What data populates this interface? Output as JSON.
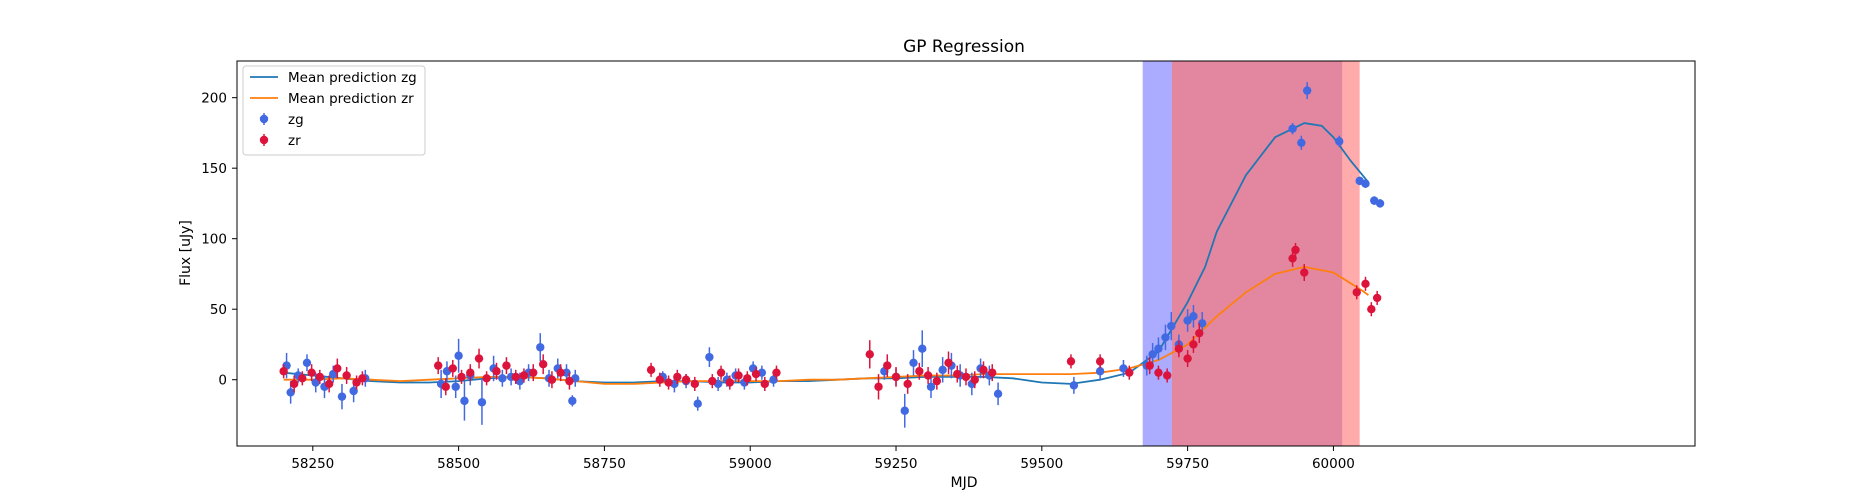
{
  "chart_data": {
    "type": "scatter",
    "title": "GP Regression",
    "xlabel": "MJD",
    "ylabel": "Flux [uJy]",
    "xlim": [
      58120,
      60620
    ],
    "ylim": [
      -47,
      226
    ],
    "xticks": [
      58250,
      58500,
      58750,
      59000,
      59250,
      59500,
      59750,
      60000
    ],
    "yticks": [
      0,
      50,
      100,
      150,
      200
    ],
    "grid": false,
    "legend_position": "top-left",
    "colors": {
      "zg": "#4169e1",
      "zr": "#dc143c",
      "mean_zg": "#1f77b4",
      "mean_zr": "#ff7f0e"
    },
    "shaded_regions": [
      {
        "x0": 59673,
        "x1": 59723,
        "color": "#0000ff",
        "opacity": 0.33
      },
      {
        "x0": 59723,
        "x1": 60015,
        "color": "#9370db",
        "opacity": 0.38
      },
      {
        "x0": 59723,
        "x1": 60045,
        "color": "#ff0000",
        "opacity": 0.33
      }
    ],
    "series": [
      {
        "name": "Mean prediction zg",
        "kind": "line",
        "x": [
          58200,
          58250,
          58300,
          58350,
          58400,
          58450,
          58500,
          58550,
          58600,
          58650,
          58700,
          58750,
          58800,
          58850,
          58900,
          58950,
          59000,
          59050,
          59100,
          59150,
          59200,
          59250,
          59300,
          59350,
          59400,
          59450,
          59500,
          59550,
          59600,
          59650,
          59700,
          59750,
          59780,
          59800,
          59850,
          59900,
          59950,
          59980,
          60000,
          60030,
          60060
        ],
        "y": [
          5,
          3,
          1,
          -1,
          -2,
          -2,
          -1,
          1,
          2,
          1,
          -1,
          -2,
          -2,
          -1,
          -1,
          -2,
          -2,
          -1,
          -1,
          0,
          1,
          1,
          2,
          2,
          2,
          1,
          -2,
          -3,
          0,
          5,
          20,
          55,
          80,
          105,
          145,
          172,
          182,
          180,
          172,
          155,
          140
        ]
      },
      {
        "name": "Mean prediction zr",
        "kind": "line",
        "x": [
          58200,
          58250,
          58300,
          58350,
          58400,
          58450,
          58500,
          58550,
          58600,
          58650,
          58700,
          58750,
          58800,
          58850,
          58900,
          58950,
          59000,
          59050,
          59100,
          59150,
          59200,
          59250,
          59300,
          59350,
          59400,
          59450,
          59500,
          59550,
          59600,
          59650,
          59700,
          59750,
          59800,
          59850,
          59900,
          59950,
          60000,
          60050,
          60060
        ],
        "y": [
          0,
          0,
          1,
          0,
          -1,
          0,
          1,
          2,
          2,
          1,
          -1,
          -3,
          -3,
          -2,
          -1,
          -1,
          -1,
          -1,
          0,
          0,
          1,
          2,
          3,
          3,
          4,
          4,
          4,
          4,
          5,
          8,
          14,
          25,
          45,
          62,
          75,
          80,
          76,
          63,
          60
        ]
      },
      {
        "name": "zg",
        "kind": "errorbar",
        "x": [
          58205,
          58212,
          58225,
          58240,
          58255,
          58270,
          58285,
          58300,
          58320,
          58340,
          58470,
          58480,
          58495,
          58500,
          58510,
          58520,
          58540,
          58560,
          58575,
          58590,
          58605,
          58620,
          58640,
          58655,
          58670,
          58685,
          58695,
          58700,
          58850,
          58870,
          58890,
          58910,
          58930,
          58945,
          58960,
          58975,
          58990,
          59005,
          59020,
          59040,
          59230,
          59250,
          59265,
          59280,
          59295,
          59310,
          59330,
          59345,
          59360,
          59380,
          59395,
          59410,
          59425,
          59555,
          59600,
          59640,
          59680,
          59690,
          59700,
          59712,
          59722,
          59735,
          59750,
          59760,
          59775,
          59930,
          59945,
          59955,
          60010,
          60045,
          60055,
          60070,
          60080
        ],
        "y": [
          10,
          -9,
          3,
          12,
          -2,
          -5,
          4,
          -12,
          -8,
          1,
          -3,
          6,
          -5,
          17,
          -15,
          3,
          -16,
          8,
          1,
          2,
          -1,
          5,
          23,
          1,
          8,
          5,
          -15,
          1,
          2,
          -3,
          -1,
          -17,
          16,
          -3,
          0,
          3,
          -2,
          8,
          5,
          0,
          6,
          2,
          -22,
          12,
          22,
          -5,
          7,
          10,
          3,
          -3,
          8,
          3,
          -10,
          -4,
          6,
          8,
          10,
          18,
          22,
          30,
          38,
          25,
          42,
          45,
          40,
          178,
          168,
          205,
          169,
          141,
          139,
          127,
          125
        ],
        "err": [
          9,
          8,
          5,
          6,
          7,
          8,
          6,
          9,
          8,
          6,
          10,
          7,
          8,
          12,
          14,
          7,
          16,
          9,
          6,
          6,
          6,
          6,
          10,
          6,
          7,
          6,
          4,
          6,
          4,
          6,
          5,
          5,
          7,
          5,
          5,
          5,
          5,
          5,
          5,
          5,
          6,
          6,
          12,
          9,
          13,
          8,
          9,
          9,
          8,
          8,
          7,
          7,
          8,
          6,
          6,
          6,
          7,
          8,
          8,
          9,
          10,
          7,
          8,
          8,
          8,
          4,
          5,
          6,
          4,
          3,
          3,
          3,
          3
        ]
      },
      {
        "name": "zr",
        "kind": "errorbar",
        "x": [
          58200,
          58218,
          58232,
          58248,
          58262,
          58278,
          58292,
          58308,
          58325,
          58335,
          58465,
          58478,
          58490,
          58505,
          58520,
          58535,
          58548,
          58565,
          58582,
          58598,
          58612,
          58628,
          58645,
          58660,
          58675,
          58690,
          58830,
          58845,
          58860,
          58875,
          58890,
          58905,
          58935,
          58950,
          58965,
          58980,
          58995,
          59010,
          59025,
          59045,
          59205,
          59220,
          59235,
          59250,
          59270,
          59290,
          59305,
          59320,
          59340,
          59355,
          59370,
          59385,
          59400,
          59415,
          59550,
          59600,
          59650,
          59685,
          59700,
          59715,
          59735,
          59750,
          59760,
          59770,
          59930,
          59935,
          59950,
          60040,
          60055,
          60065,
          60075
        ],
        "y": [
          6,
          -3,
          1,
          5,
          2,
          -3,
          8,
          3,
          -2,
          1,
          10,
          -5,
          8,
          2,
          5,
          15,
          1,
          6,
          10,
          2,
          3,
          5,
          11,
          0,
          5,
          -1,
          7,
          0,
          -2,
          2,
          0,
          -3,
          -1,
          5,
          -2,
          3,
          1,
          4,
          -3,
          5,
          18,
          -5,
          10,
          2,
          -3,
          6,
          3,
          -1,
          12,
          4,
          2,
          0,
          7,
          5,
          13,
          13,
          5,
          10,
          5,
          3,
          22,
          15,
          25,
          33,
          86,
          92,
          76,
          62,
          68,
          50,
          58
        ],
        "err": [
          5,
          6,
          5,
          6,
          5,
          6,
          7,
          6,
          5,
          5,
          6,
          6,
          6,
          5,
          6,
          7,
          5,
          6,
          6,
          5,
          5,
          6,
          7,
          6,
          6,
          6,
          5,
          5,
          5,
          5,
          4,
          5,
          5,
          5,
          5,
          5,
          5,
          5,
          5,
          5,
          10,
          9,
          8,
          7,
          7,
          6,
          6,
          6,
          8,
          6,
          6,
          6,
          6,
          6,
          5,
          5,
          5,
          6,
          5,
          5,
          6,
          6,
          6,
          7,
          6,
          5,
          6,
          5,
          5,
          5,
          5
        ]
      }
    ]
  }
}
